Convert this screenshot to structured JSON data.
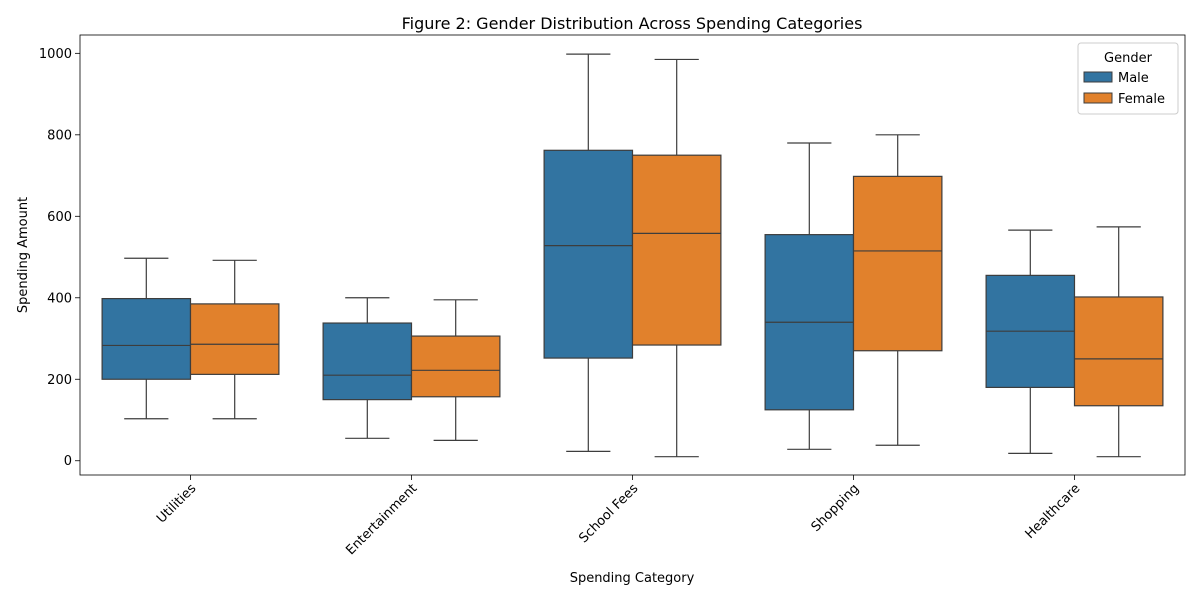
{
  "chart_data": {
    "type": "box",
    "title": "Figure 2: Gender Distribution Across Spending Categories",
    "xlabel": "Spending Category",
    "ylabel": "Spending Amount",
    "ylim": [
      -35,
      1045
    ],
    "yticks": [
      0,
      200,
      400,
      600,
      800,
      1000
    ],
    "categories": [
      "Utilities",
      "Entertainment",
      "School Fees",
      "Shopping",
      "Healthcare"
    ],
    "legend": {
      "title": "Gender",
      "position": "top-right"
    },
    "grid": false,
    "series": [
      {
        "name": "Male",
        "color": "#3274a1",
        "boxes": [
          {
            "whisker_low": 103,
            "q1": 200,
            "median": 283,
            "q3": 398,
            "whisker_high": 497
          },
          {
            "whisker_low": 55,
            "q1": 150,
            "median": 210,
            "q3": 338,
            "whisker_high": 400
          },
          {
            "whisker_low": 23,
            "q1": 252,
            "median": 528,
            "q3": 762,
            "whisker_high": 998
          },
          {
            "whisker_low": 28,
            "q1": 125,
            "median": 340,
            "q3": 555,
            "whisker_high": 780
          },
          {
            "whisker_low": 18,
            "q1": 180,
            "median": 318,
            "q3": 455,
            "whisker_high": 566
          }
        ]
      },
      {
        "name": "Female",
        "color": "#e1812c",
        "boxes": [
          {
            "whisker_low": 103,
            "q1": 212,
            "median": 286,
            "q3": 385,
            "whisker_high": 492
          },
          {
            "whisker_low": 50,
            "q1": 157,
            "median": 222,
            "q3": 306,
            "whisker_high": 395
          },
          {
            "whisker_low": 10,
            "q1": 284,
            "median": 558,
            "q3": 750,
            "whisker_high": 985
          },
          {
            "whisker_low": 38,
            "q1": 270,
            "median": 515,
            "q3": 698,
            "whisker_high": 800
          },
          {
            "whisker_low": 10,
            "q1": 135,
            "median": 250,
            "q3": 402,
            "whisker_high": 574
          }
        ]
      }
    ]
  }
}
